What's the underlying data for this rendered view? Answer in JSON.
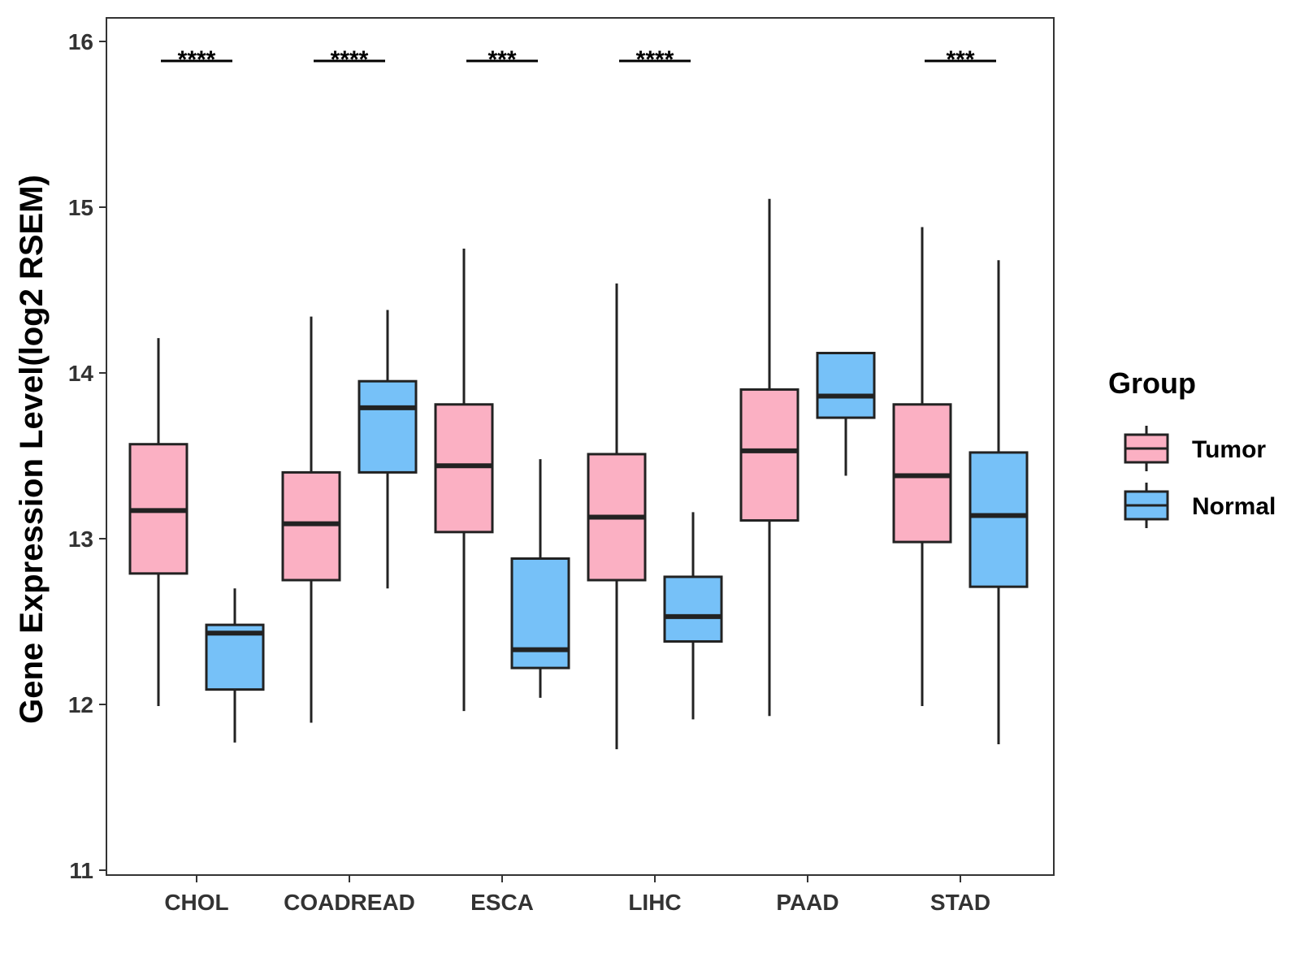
{
  "chart_data": {
    "type": "boxplot",
    "title": "",
    "xlabel": "",
    "ylabel": "Gene Expression Level(log2 RSEM)",
    "ylim": [
      11,
      16
    ],
    "yticks": [
      11,
      12,
      13,
      14,
      15,
      16
    ],
    "ytick_labels": [
      "11",
      "12",
      "13",
      "14",
      "15",
      "16"
    ],
    "categories": [
      "CHOL",
      "COADREAD",
      "ESCA",
      "LIHC",
      "PAAD",
      "STAD"
    ],
    "legend": {
      "title": "Group",
      "position": "right",
      "entries": [
        "Tumor",
        "Normal"
      ]
    },
    "colors": {
      "Tumor": "#FBB0C3",
      "Normal": "#76C1F8",
      "outline": "#222222"
    },
    "series": [
      {
        "name": "Tumor",
        "boxes": [
          {
            "category": "CHOL",
            "whisker_low": 11.99,
            "q1": 12.79,
            "median": 13.17,
            "q3": 13.57,
            "whisker_high": 14.21
          },
          {
            "category": "COADREAD",
            "whisker_low": 11.89,
            "q1": 12.75,
            "median": 13.09,
            "q3": 13.4,
            "whisker_high": 14.34
          },
          {
            "category": "ESCA",
            "whisker_low": 11.96,
            "q1": 13.04,
            "median": 13.44,
            "q3": 13.81,
            "whisker_high": 14.75
          },
          {
            "category": "LIHC",
            "whisker_low": 11.73,
            "q1": 12.75,
            "median": 13.13,
            "q3": 13.51,
            "whisker_high": 14.54
          },
          {
            "category": "PAAD",
            "whisker_low": 11.93,
            "q1": 13.11,
            "median": 13.53,
            "q3": 13.9,
            "whisker_high": 15.05
          },
          {
            "category": "STAD",
            "whisker_low": 11.99,
            "q1": 12.98,
            "median": 13.38,
            "q3": 13.81,
            "whisker_high": 14.88
          }
        ]
      },
      {
        "name": "Normal",
        "boxes": [
          {
            "category": "CHOL",
            "whisker_low": 11.77,
            "q1": 12.09,
            "median": 12.43,
            "q3": 12.48,
            "whisker_high": 12.7
          },
          {
            "category": "COADREAD",
            "whisker_low": 12.7,
            "q1": 13.4,
            "median": 13.79,
            "q3": 13.95,
            "whisker_high": 14.38
          },
          {
            "category": "ESCA",
            "whisker_low": 12.04,
            "q1": 12.22,
            "median": 12.33,
            "q3": 12.88,
            "whisker_high": 13.48
          },
          {
            "category": "LIHC",
            "whisker_low": 11.91,
            "q1": 12.38,
            "median": 12.53,
            "q3": 12.77,
            "whisker_high": 13.16
          },
          {
            "category": "PAAD",
            "whisker_low": 13.38,
            "q1": 13.73,
            "median": 13.86,
            "q3": 14.12,
            "whisker_high": 14.12
          },
          {
            "category": "STAD",
            "whisker_low": 11.76,
            "q1": 12.71,
            "median": 13.14,
            "q3": 13.52,
            "whisker_high": 14.68
          }
        ]
      }
    ],
    "significance": [
      {
        "category": "CHOL",
        "label": "****"
      },
      {
        "category": "COADREAD",
        "label": "****"
      },
      {
        "category": "ESCA",
        "label": "***"
      },
      {
        "category": "LIHC",
        "label": "****"
      },
      {
        "category": "STAD",
        "label": "***"
      }
    ]
  }
}
